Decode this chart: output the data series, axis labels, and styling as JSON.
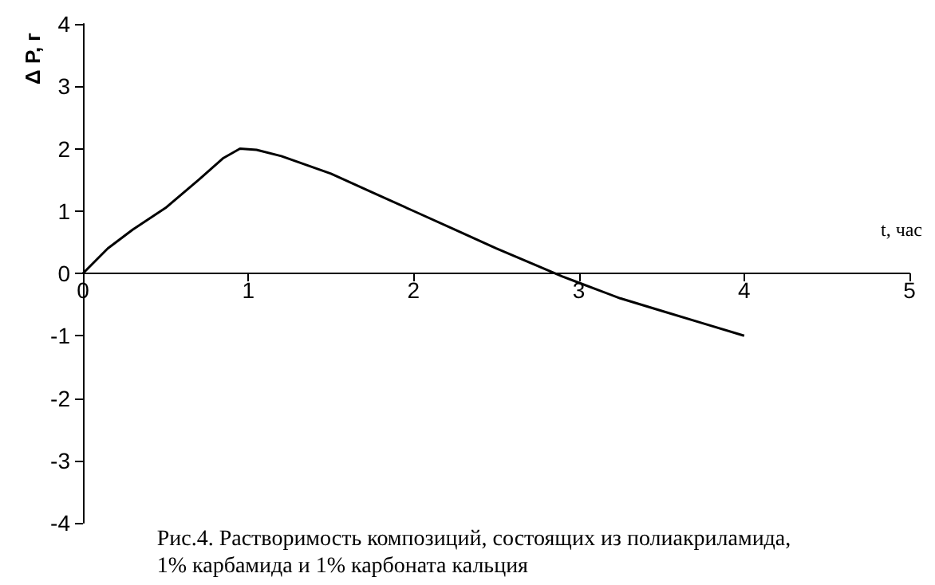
{
  "chart_data": {
    "type": "line",
    "xlabel": "t, час",
    "ylabel": "Δ P, г",
    "x": [
      0,
      0.15,
      0.3,
      0.5,
      0.7,
      0.85,
      0.95,
      1.05,
      1.2,
      1.5,
      1.75,
      2,
      2.25,
      2.5,
      2.75,
      2.9,
      3,
      3.25,
      3.5,
      3.75,
      4
    ],
    "series": [
      {
        "color": "#000000",
        "values": [
          0,
          0.4,
          0.7,
          1.05,
          1.5,
          1.85,
          2.0,
          1.98,
          1.88,
          1.6,
          1.3,
          1.0,
          0.7,
          0.4,
          0.12,
          -0.05,
          -0.15,
          -0.4,
          -0.6,
          -0.8,
          -1.0
        ]
      }
    ],
    "xlim": [
      0,
      5
    ],
    "xticks": [
      0,
      1,
      2,
      3,
      4,
      5
    ],
    "ylim": [
      -4,
      4
    ],
    "yticks": [
      -4,
      -3,
      -2,
      -1,
      0,
      1,
      2,
      3,
      4
    ],
    "marker": "none",
    "line_style": "solid",
    "annotations": [
      "Рис.4. Растворимость композиций, состоящих из полиакриламида,\n1% карбамида и 1% карбоната кальция"
    ]
  }
}
